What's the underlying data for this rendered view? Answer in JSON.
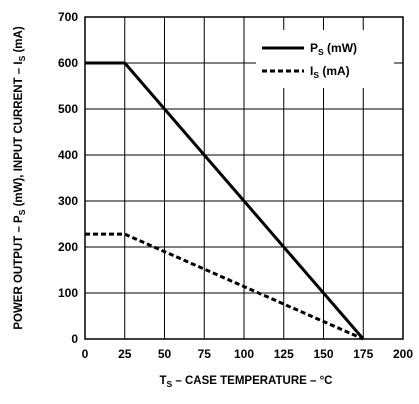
{
  "chart_data": {
    "type": "line",
    "xlabel": {
      "pre": "T",
      "sub": "S",
      "post": " – CASE TEMPERATURE – °C"
    },
    "ylabel": {
      "part1": "POWER OUTPUT – P",
      "sub1": "S",
      "part2": " (mW), INPUT CURRENT – I",
      "sub2": "S",
      "part3": " (mA)"
    },
    "xlim": [
      0,
      200
    ],
    "ylim": [
      0,
      700
    ],
    "xticks": [
      0,
      25,
      50,
      75,
      100,
      125,
      150,
      175,
      200
    ],
    "yticks": [
      0,
      100,
      200,
      300,
      400,
      500,
      600,
      700
    ],
    "grid": true,
    "legend_position": "top-right",
    "series": [
      {
        "name": {
          "main": "P",
          "sub": "S",
          "unit": " (mW)"
        },
        "style": "solid",
        "color": "#000000",
        "x": [
          0,
          25,
          175
        ],
        "y": [
          600,
          600,
          0
        ]
      },
      {
        "name": {
          "main": "I",
          "sub": "S",
          "unit": " (mA)"
        },
        "style": "dashed",
        "color": "#000000",
        "x": [
          0,
          25,
          175
        ],
        "y": [
          228,
          228,
          0
        ]
      }
    ]
  }
}
